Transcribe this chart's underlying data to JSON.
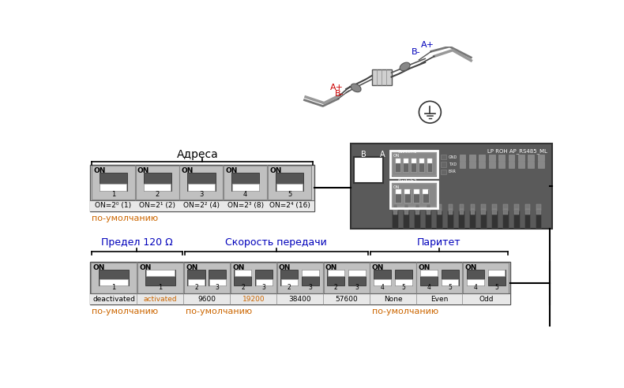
{
  "bg_color": "#ffffff",
  "orange_color": "#cc6600",
  "blue_color": "#0000bb",
  "red_color": "#cc0000",
  "addr_label": "Адреса",
  "addr_switches": [
    {
      "num": "1",
      "label": "ON=2⁰ (1)"
    },
    {
      "num": "2",
      "label": "ON=2¹ (2)"
    },
    {
      "num": "3",
      "label": "ON=2² (4)"
    },
    {
      "num": "4",
      "label": "ON=2³ (8)"
    },
    {
      "num": "5",
      "label": "ON=2⁴ (16)"
    }
  ],
  "addr_default": "по-умолчанию",
  "section1_label": "Предел 120 Ω",
  "section2_label": "Скорость передачи",
  "section3_label": "Паритет",
  "default1_label": "по-умолчанию",
  "default2_label": "по-умолчанию",
  "default3_label": "по-умолчанию",
  "board_label": "LP ROH AP_RS485_ML",
  "board_label2": "Switch1",
  "board_label3": "Switch2",
  "Aplus1": "A+",
  "Bminus1": "B-",
  "Aplus2": "A+",
  "Bminus2": "B-",
  "B_label": "B",
  "A_label": "A",
  "bottom_configs": [
    {
      "label": "deactivated",
      "num": "1",
      "twin": false,
      "on_bits": [
        false
      ]
    },
    {
      "label": "activated",
      "num": "1",
      "twin": false,
      "on_bits": [
        true
      ]
    },
    {
      "label": "9600",
      "num": "2 3",
      "twin": true,
      "on_bits": [
        false,
        false
      ]
    },
    {
      "label": "19200",
      "num": "2 3",
      "twin": true,
      "on_bits": [
        true,
        false
      ]
    },
    {
      "label": "38400",
      "num": "2 3",
      "twin": true,
      "on_bits": [
        false,
        true
      ]
    },
    {
      "label": "57600",
      "num": "2 3",
      "twin": true,
      "on_bits": [
        true,
        true
      ]
    },
    {
      "label": "None",
      "num": "4 5",
      "twin": true,
      "on_bits": [
        false,
        false
      ]
    },
    {
      "label": "Even",
      "num": "4 5",
      "twin": true,
      "on_bits": [
        true,
        false
      ]
    },
    {
      "label": "Odd",
      "num": "4 5",
      "twin": true,
      "on_bits": [
        false,
        true
      ]
    }
  ],
  "bottom_label_colors": [
    "#000000",
    "#cc6600",
    "#000000",
    "#cc6600",
    "#000000",
    "#000000",
    "#000000",
    "#000000",
    "#000000"
  ]
}
